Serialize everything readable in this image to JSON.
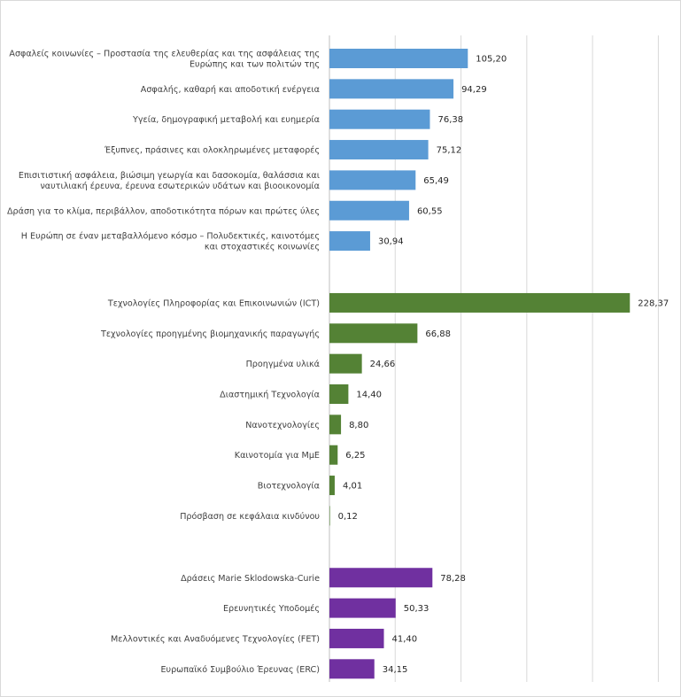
{
  "chart_data": {
    "type": "bar",
    "orientation": "horizontal",
    "title": "",
    "xlabel": "",
    "ylabel": "",
    "xlim": [
      0,
      250
    ],
    "grid": true,
    "gridlines": [
      0,
      50,
      100,
      150,
      200,
      250
    ],
    "legend": "none",
    "groups": [
      {
        "color": "#5B9BD5",
        "items": [
          {
            "label": [
              "Ασφαλείς κοινωνίες – Προστασία της ελευθερίας και της ασφάλειας της",
              "Ευρώπης και των πολιτών της"
            ],
            "value": 105.2,
            "value_label": "105,20"
          },
          {
            "label": [
              "Ασφαλής, καθαρή και αποδοτική ενέργεια"
            ],
            "value": 94.29,
            "value_label": "94,29"
          },
          {
            "label": [
              "Υγεία, δημογραφική μεταβολή και ευημερία"
            ],
            "value": 76.38,
            "value_label": "76,38"
          },
          {
            "label": [
              "Έξυπνες, πράσινες και ολοκληρωμένες μεταφορές"
            ],
            "value": 75.12,
            "value_label": "75,12"
          },
          {
            "label": [
              "Επισιτιστική ασφάλεια, βιώσιμη γεωργία και δασοκομία, θαλάσσια και",
              "ναυτιλιακή έρευνα, έρευνα εσωτερικών υδάτων και βιοοικονομία"
            ],
            "value": 65.49,
            "value_label": "65,49"
          },
          {
            "label": [
              "Δράση για το κλίμα, περιβάλλον, αποδοτικότητα πόρων και πρώτες ύλες"
            ],
            "value": 60.55,
            "value_label": "60,55"
          },
          {
            "label": [
              "Η Ευρώπη σε έναν μεταβαλλόμενο κόσμο – Πολυδεκτικές, καινοτόμες",
              "και στοχαστικές κοινωνίες"
            ],
            "value": 30.94,
            "value_label": "30,94"
          }
        ]
      },
      {
        "color": "#548235",
        "items": [
          {
            "label": [
              "Τεχνολογίες Πληροφορίας και Επικοινωνιών (ICT)"
            ],
            "value": 228.37,
            "value_label": "228,37"
          },
          {
            "label": [
              "Τεχνολογίες προηγμένης βιομηχανικής παραγωγής"
            ],
            "value": 66.88,
            "value_label": "66,88"
          },
          {
            "label": [
              "Προηγμένα υλικά"
            ],
            "value": 24.66,
            "value_label": "24,66"
          },
          {
            "label": [
              "Διαστημική Τεχνολογία"
            ],
            "value": 14.4,
            "value_label": "14,40"
          },
          {
            "label": [
              "Νανοτεχνολογίες"
            ],
            "value": 8.8,
            "value_label": "8,80"
          },
          {
            "label": [
              "Καινοτομία για ΜμΕ"
            ],
            "value": 6.25,
            "value_label": "6,25"
          },
          {
            "label": [
              "Βιοτεχνολογία"
            ],
            "value": 4.01,
            "value_label": "4,01"
          },
          {
            "label": [
              "Πρόσβαση σε κεφάλαια κινδύνου"
            ],
            "value": 0.12,
            "value_label": "0,12"
          }
        ]
      },
      {
        "color": "#7030A0",
        "items": [
          {
            "label": [
              "Δράσεις Marie Sklodowska-Curie"
            ],
            "value": 78.28,
            "value_label": "78,28"
          },
          {
            "label": [
              "Ερευνητικές Υποδομές"
            ],
            "value": 50.33,
            "value_label": "50,33"
          },
          {
            "label": [
              "Μελλοντικές και Αναδυόμενες Τεχνολογίες (FET)"
            ],
            "value": 41.4,
            "value_label": "41,40"
          },
          {
            "label": [
              "Ευρωπαϊκό Συμβούλιο Έρευνας (ERC)"
            ],
            "value": 34.15,
            "value_label": "34,15"
          }
        ]
      }
    ]
  }
}
